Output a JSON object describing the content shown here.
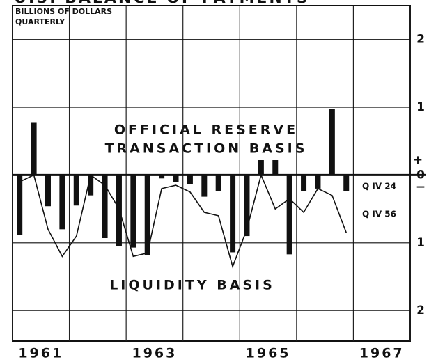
{
  "chart_data": {
    "type": "bar_line",
    "title": "U.S. BALANCE OF PAYMENTS",
    "unit_lines": [
      "BILLIONS OF DOLLARS",
      "QUARTERLY"
    ],
    "annotations": [
      "OFFICIAL RESERVE",
      "TRANSACTION BASIS",
      "LIQUIDITY BASIS"
    ],
    "end_notes": [
      "Q IV 24",
      "Q IV 56"
    ],
    "signs": [
      "+",
      "−"
    ],
    "x": [
      1961.125,
      1961.375,
      1961.625,
      1961.875,
      1962.125,
      1962.375,
      1962.625,
      1962.875,
      1963.125,
      1963.375,
      1963.625,
      1963.875,
      1964.125,
      1964.375,
      1964.625,
      1964.875,
      1965.125,
      1965.375,
      1965.625,
      1965.875,
      1966.125,
      1966.375,
      1966.625,
      1966.875
    ],
    "series": [
      {
        "kind": "bar",
        "color": "#111111",
        "values": [
          -0.88,
          0.78,
          -0.46,
          -0.8,
          -0.45,
          -0.3,
          -0.93,
          -1.05,
          -1.07,
          -1.18,
          -0.05,
          -0.1,
          -0.13,
          -0.32,
          -0.24,
          -1.14,
          -0.9,
          0.22,
          0.22,
          -1.17,
          -0.24,
          -0.2,
          0.97,
          -0.24
        ]
      },
      {
        "kind": "line",
        "color": "#111111",
        "values": [
          -0.1,
          0.0,
          -0.8,
          -1.2,
          -0.9,
          0.0,
          -0.15,
          -0.5,
          -1.2,
          -1.15,
          -0.2,
          -0.15,
          -0.25,
          -0.55,
          -0.6,
          -1.35,
          -0.8,
          0.0,
          -0.5,
          -0.35,
          -0.55,
          -0.2,
          -0.3,
          -0.85
        ]
      }
    ],
    "xlim": [
      1961,
      1968
    ],
    "xticks": [
      1961,
      1962,
      1963,
      1964,
      1965,
      1966,
      1967,
      1968
    ],
    "xlabels": [
      {
        "value": 1961.5,
        "label": "1961"
      },
      {
        "value": 1963.5,
        "label": "1963"
      },
      {
        "value": 1965.5,
        "label": "1965"
      },
      {
        "value": 1967.5,
        "label": "1967"
      }
    ],
    "ylim": [
      -2.45,
      2.5
    ],
    "yticks": [
      2,
      1,
      0,
      {
        "value": -1,
        "label": "1"
      },
      {
        "value": -2,
        "label": "2"
      }
    ],
    "grid": true
  }
}
